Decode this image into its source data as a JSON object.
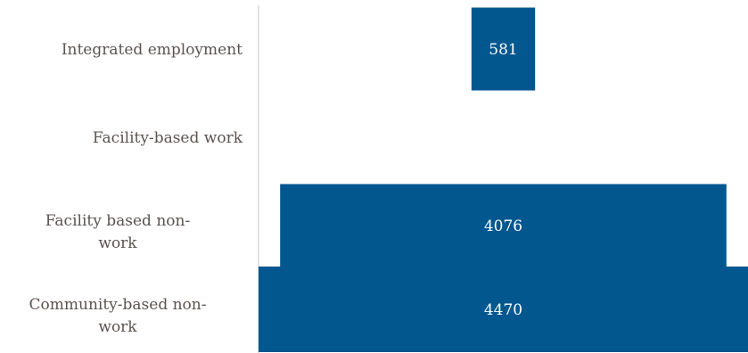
{
  "chart_data": {
    "type": "bar",
    "orientation": "horizontal",
    "layout": "centered (funnel)",
    "categories": [
      "Integrated employment",
      "Facility-based work",
      "Facility based non-work",
      "Community-based non-work"
    ],
    "values": [
      581,
      0,
      4076,
      4470
    ],
    "data_labels": [
      "581",
      "",
      "4076",
      "4470"
    ],
    "title": "",
    "xlabel": "",
    "ylabel": "",
    "grid": false,
    "legend": "none",
    "bar_color": "#02578f",
    "label_color": "#5b5350",
    "axis_color": "#d9d9d9"
  }
}
